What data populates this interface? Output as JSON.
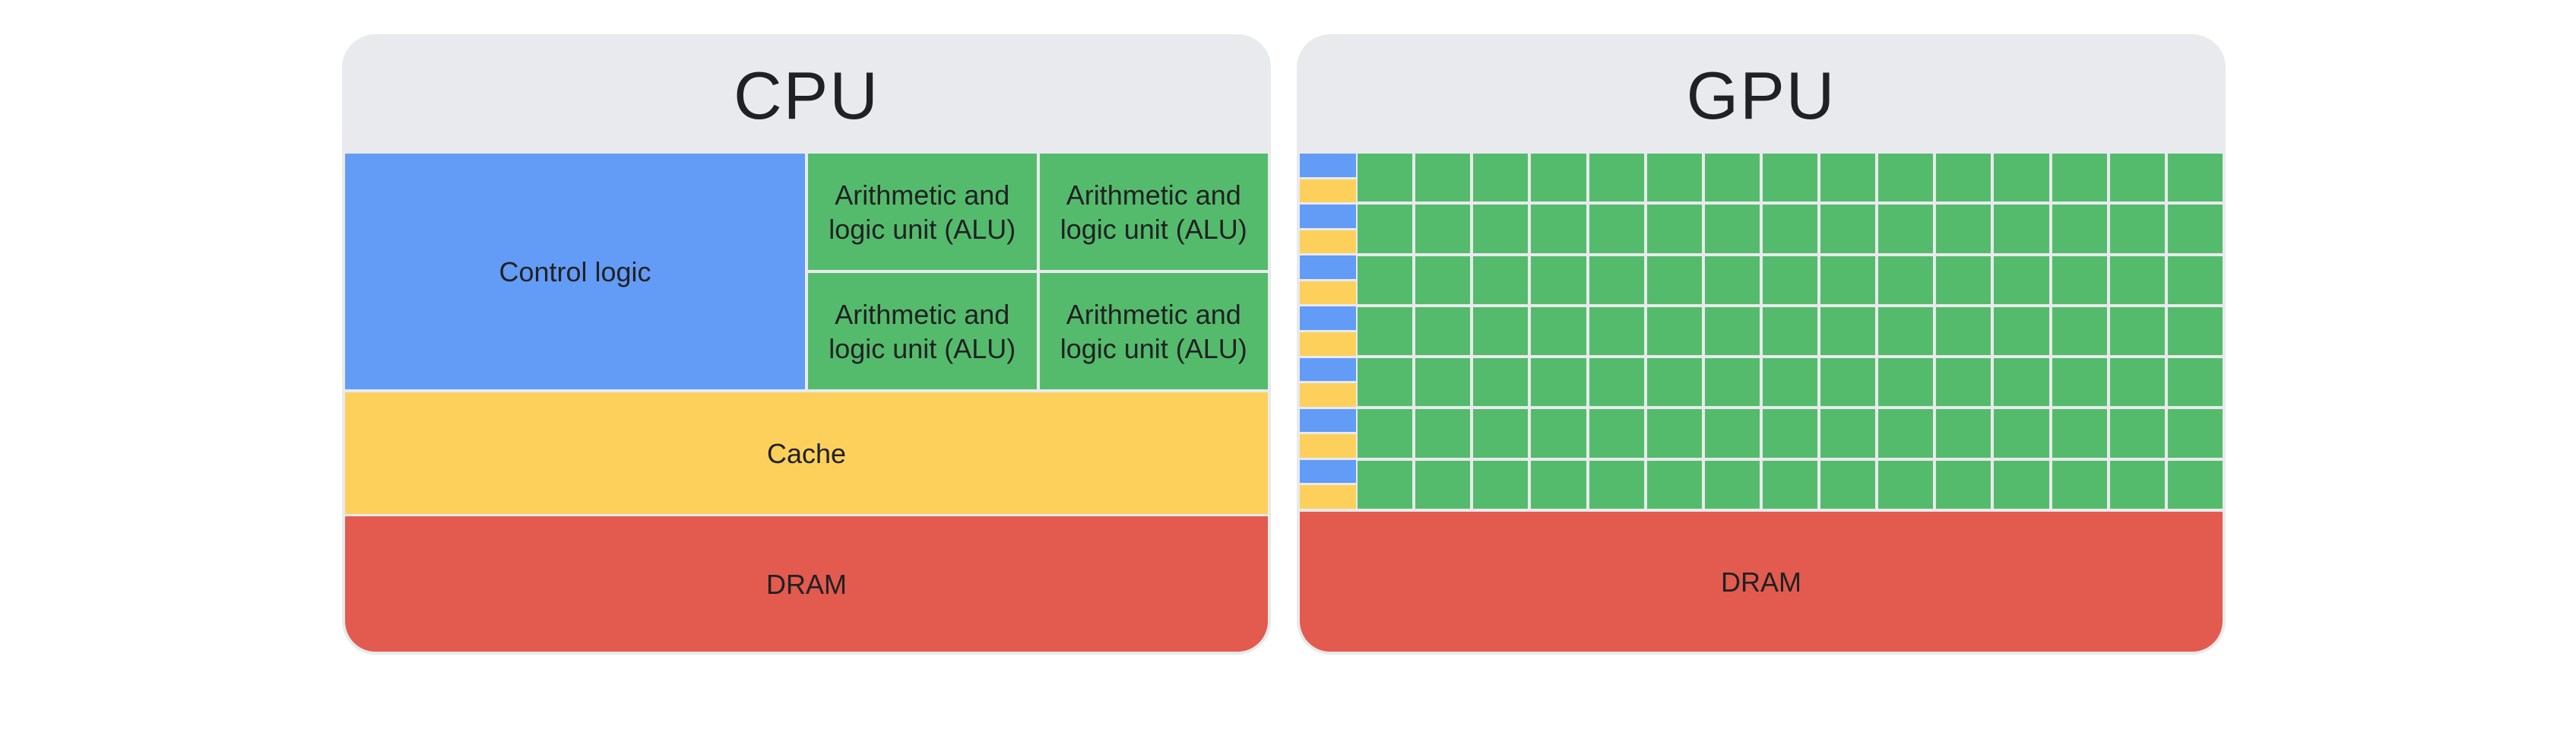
{
  "cpu": {
    "title": "CPU",
    "control_logic": "Control logic",
    "alus": [
      "Arithmetic and logic unit (ALU)",
      "Arithmetic and logic unit (ALU)",
      "Arithmetic and logic unit (ALU)",
      "Arithmetic and logic unit (ALU)"
    ],
    "cache": "Cache",
    "dram": "DRAM"
  },
  "gpu": {
    "title": "GPU",
    "core_rows": 7,
    "core_columns": 15,
    "dram": "DRAM"
  },
  "colors": {
    "control": "#639cf6",
    "alu": "#55bb6c",
    "cache": "#fdd05c",
    "dram": "#e25b4e",
    "header": "#e8eaed"
  }
}
